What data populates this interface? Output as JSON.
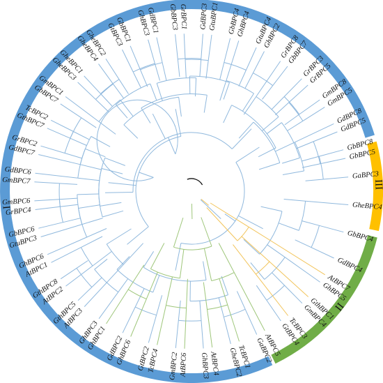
{
  "colors": {
    "group_I": "#5b9bd5",
    "group_II": "#70ad47",
    "group_III": "#ffc000",
    "branch_I": "#8fb8dd",
    "branch_II": "#9ec67a",
    "branch_III": "#f2c45a",
    "root": "#111111"
  },
  "groups": [
    {
      "id": "I",
      "label": "I"
    },
    {
      "id": "II",
      "label": "II"
    },
    {
      "id": "III",
      "label": "III"
    }
  ],
  "leaves": [
    {
      "label": "GbBPC5",
      "group": "I"
    },
    {
      "label": "GdBPC5",
      "group": "I"
    },
    {
      "label": "GmBPC5",
      "group": "I"
    },
    {
      "label": "GrBPC5",
      "group": "I"
    },
    {
      "label": "GbBPC7",
      "group": "I"
    },
    {
      "label": "GhBPC2",
      "group": "I"
    },
    {
      "label": "GhBPC4",
      "group": "I"
    },
    {
      "label": "GtuBPC1",
      "group": "I"
    },
    {
      "label": "GrBPC1",
      "group": "I"
    },
    {
      "label": "GdBPC1",
      "group": "I"
    },
    {
      "label": "GbBPC1",
      "group": "I"
    },
    {
      "label": "GheBPC2",
      "group": "I"
    },
    {
      "label": "GheBPC1",
      "group": "I"
    },
    {
      "label": "GmBPC1",
      "group": "I"
    },
    {
      "label": "TcBPC2",
      "group": "I"
    },
    {
      "label": "GrBPC2",
      "group": "I"
    },
    {
      "label": "GdBPC6",
      "group": "I"
    },
    {
      "label": "GmBPC6",
      "group": "I"
    },
    {
      "label": "GbBPC6",
      "group": "I"
    },
    {
      "label": "GhBPC6",
      "group": "I"
    },
    {
      "label": "GthBPC8",
      "group": "I"
    },
    {
      "label": "GthBPC5",
      "group": "I"
    },
    {
      "label": "GhBPC3",
      "group": "I"
    },
    {
      "label": "GdBPC2",
      "group": "I"
    },
    {
      "label": "GtBPC2",
      "group": "I"
    },
    {
      "label": "GmBPC2",
      "group": "I"
    },
    {
      "label": "GhBPC3",
      "group": "I"
    },
    {
      "label": "GheBPC2",
      "group": "I"
    },
    {
      "label": "GaBPC2",
      "group": "I"
    },
    {
      "label": "GtBPC4",
      "group": "I"
    },
    {
      "label": "GmBPC4",
      "group": "I"
    },
    {
      "label": "GhBPC5",
      "group": "I"
    },
    {
      "label": "GdBPC4",
      "group": "I"
    },
    {
      "label": "GbBPC4",
      "group": "I"
    },
    {
      "label": "GheBPC4",
      "group": "I"
    },
    {
      "label": "GaBPC3",
      "group": "I"
    },
    {
      "label": "GbBPC8",
      "group": "I"
    },
    {
      "label": "GdBPC8",
      "group": "I"
    },
    {
      "label": "GmBPC8",
      "group": "I"
    },
    {
      "label": "GrBPC3",
      "group": "I"
    },
    {
      "label": "GrBPC8",
      "group": "I"
    },
    {
      "label": "GtuBPC4",
      "group": "I"
    },
    {
      "label": "GbBPC4",
      "group": "I"
    },
    {
      "label": "GdBPC3",
      "group": "I"
    },
    {
      "label": "GbBPC3",
      "group": "I"
    },
    {
      "label": "GhBPC3",
      "group": "I"
    },
    {
      "label": "GtBPC3",
      "group": "I"
    },
    {
      "label": "GheBPC4",
      "group": "I"
    },
    {
      "label": "GheBPC3",
      "group": "I"
    },
    {
      "label": "GbBPC7",
      "group": "I"
    },
    {
      "label": "GthBPC7",
      "group": "I"
    },
    {
      "label": "GdBPC7",
      "group": "I"
    },
    {
      "label": "GmBPC7",
      "group": "I"
    },
    {
      "label": "GrBPC4",
      "group": "I"
    },
    {
      "label": "GtuBPC3",
      "group": "I"
    },
    {
      "label": "AtBPC1",
      "group": "I"
    },
    {
      "label": "AtBPC2",
      "group": "I"
    },
    {
      "label": "AtBPC3",
      "group": "I"
    },
    {
      "label": "GhBPC1",
      "group": "II"
    },
    {
      "label": "GhBPC6",
      "group": "II"
    },
    {
      "label": "TcBPC4",
      "group": "II"
    },
    {
      "label": "AtBPC6",
      "group": "II"
    },
    {
      "label": "AtBPC4",
      "group": "II"
    },
    {
      "label": "TcBPC1",
      "group": "II"
    },
    {
      "label": "AtBPC5",
      "group": "II"
    },
    {
      "label": "TcBPC3",
      "group": "III"
    },
    {
      "label": "GthBPC1",
      "group": "III"
    },
    {
      "label": "AtBPC7",
      "group": "III"
    }
  ]
}
